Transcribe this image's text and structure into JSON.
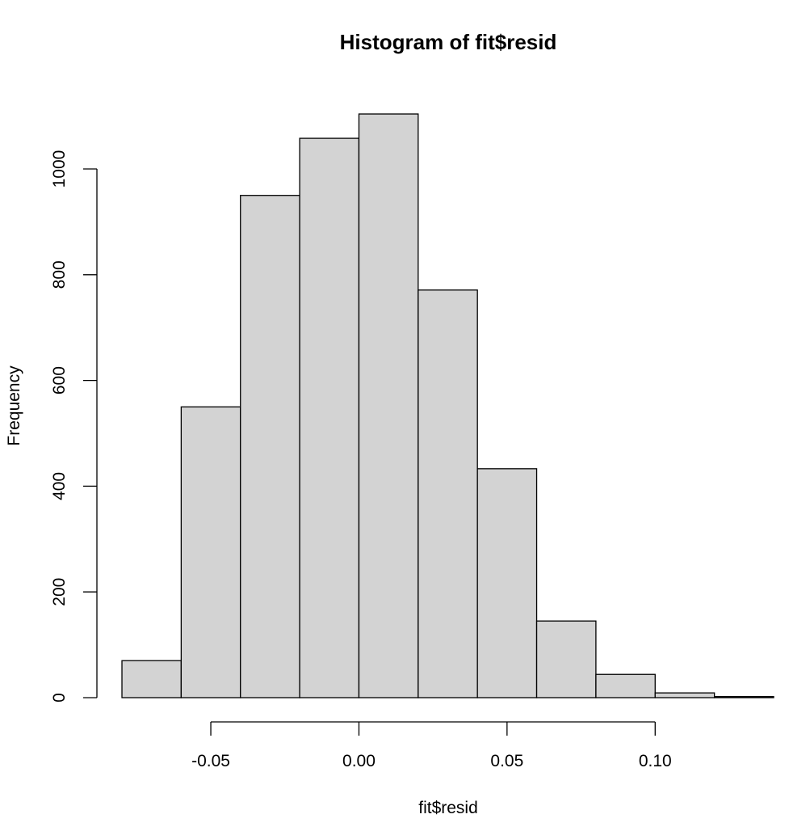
{
  "chart_data": {
    "type": "bar",
    "title": "Histogram of fit$resid",
    "xlabel": "fit$resid",
    "ylabel": "Frequency",
    "bins": [
      {
        "x0": -0.08,
        "x1": -0.06,
        "count": 70
      },
      {
        "x0": -0.06,
        "x1": -0.04,
        "count": 550
      },
      {
        "x0": -0.04,
        "x1": -0.02,
        "count": 950
      },
      {
        "x0": -0.02,
        "x1": 0.0,
        "count": 1058
      },
      {
        "x0": 0.0,
        "x1": 0.02,
        "count": 1104
      },
      {
        "x0": 0.02,
        "x1": 0.04,
        "count": 771
      },
      {
        "x0": 0.04,
        "x1": 0.06,
        "count": 433
      },
      {
        "x0": 0.06,
        "x1": 0.08,
        "count": 145
      },
      {
        "x0": 0.08,
        "x1": 0.1,
        "count": 44
      },
      {
        "x0": 0.1,
        "x1": 0.12,
        "count": 9
      },
      {
        "x0": 0.12,
        "x1": 0.14,
        "count": 2
      }
    ],
    "x_ticks": [
      {
        "value": -0.05,
        "label": "-0.05"
      },
      {
        "value": 0.0,
        "label": "0.00"
      },
      {
        "value": 0.05,
        "label": "0.05"
      },
      {
        "value": 0.1,
        "label": "0.10"
      }
    ],
    "y_ticks": [
      {
        "value": 0,
        "label": "0"
      },
      {
        "value": 200,
        "label": "200"
      },
      {
        "value": 400,
        "label": "400"
      },
      {
        "value": 600,
        "label": "600"
      },
      {
        "value": 800,
        "label": "800"
      },
      {
        "value": 1000,
        "label": "1000"
      }
    ],
    "xlim": [
      -0.08,
      0.14
    ],
    "ylim": [
      0,
      1104
    ],
    "grid": false,
    "colors": {
      "bar_fill": "#d3d3d3",
      "bar_stroke": "#000000"
    }
  }
}
